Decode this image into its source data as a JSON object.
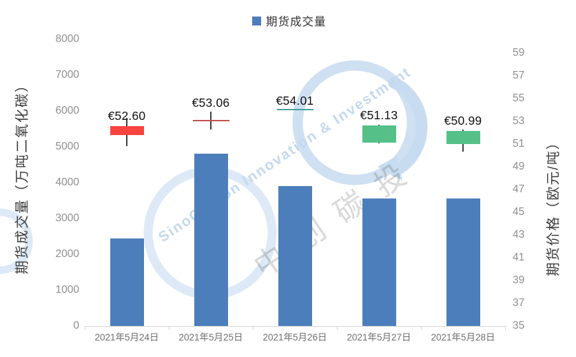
{
  "legend": {
    "items": [
      {
        "label": "期货成交量",
        "color": "#4d7ebc"
      }
    ]
  },
  "watermark": {
    "latin": "SinoCarbon Innovation & Investment",
    "cjk": "中创碳投"
  },
  "colors": {
    "bar_blue": "#4d7ebc",
    "candle_up_red": "#f8433f",
    "doji_red_line": "#c0524e",
    "doji_teal_line": "#49a3a0",
    "candle_down_green": "#55c189",
    "wick_dark": "#3f3f3f",
    "axis_line_gray": "#d6d6d6",
    "tick_text_gray": "#8e8e8e",
    "xlabel_gray": "#6f6f6f"
  },
  "chart_data": {
    "type": "combo-bar-candlestick",
    "title": "",
    "grid": false,
    "legend_position": "top-center",
    "categories": [
      "2021年5月24日",
      "2021年5月25日",
      "2021年5月26日",
      "2021年5月27日",
      "2021年5月28日"
    ],
    "left_axis": {
      "title": "期货成交量（万吨二氧化碳）",
      "min": 0,
      "max": 8000,
      "step": 1000,
      "unit": "万吨二氧化碳"
    },
    "right_axis": {
      "title": "期货价格（欧元/吨）",
      "min": 35,
      "max": 59,
      "step": 2,
      "unit": "欧元/吨"
    },
    "series": [
      {
        "name": "期货成交量",
        "type": "bar",
        "axis": "left",
        "color": "#4d7ebc",
        "values": [
          2450,
          4800,
          3900,
          3550,
          3550
        ]
      },
      {
        "name": "期货价格",
        "type": "candlestick",
        "axis": "right",
        "candles": [
          {
            "date": "2021年5月24日",
            "label": "€52.60",
            "close": 52.6,
            "direction": "up",
            "color": "#f8433f",
            "box": [
              51.8,
              52.6
            ],
            "wick": [
              50.82,
              53.28
            ]
          },
          {
            "date": "2021年5月25日",
            "label": "€53.06",
            "close": 53.06,
            "direction": "up",
            "color": "#c0524e",
            "box": [
              53.06,
              53.06
            ],
            "wick": [
              52.27,
              53.85
            ]
          },
          {
            "date": "2021年5月26日",
            "label": "€54.01",
            "close": 54.01,
            "direction": "flat",
            "color": "#49a3a0",
            "box": [
              54.01,
              54.01
            ],
            "wick": [
              54.01,
              54.01
            ]
          },
          {
            "date": "2021年5月27日",
            "label": "€51.13",
            "close": 51.13,
            "direction": "down",
            "color": "#55c189",
            "box": [
              51.13,
              52.64
            ],
            "wick": [
              51.05,
              52.7
            ]
          },
          {
            "date": "2021年5月28日",
            "label": "€50.99",
            "close": 50.99,
            "direction": "down",
            "color": "#55c189",
            "box": [
              50.99,
              52.15
            ],
            "wick": [
              50.33,
              52.27
            ]
          }
        ]
      }
    ]
  }
}
